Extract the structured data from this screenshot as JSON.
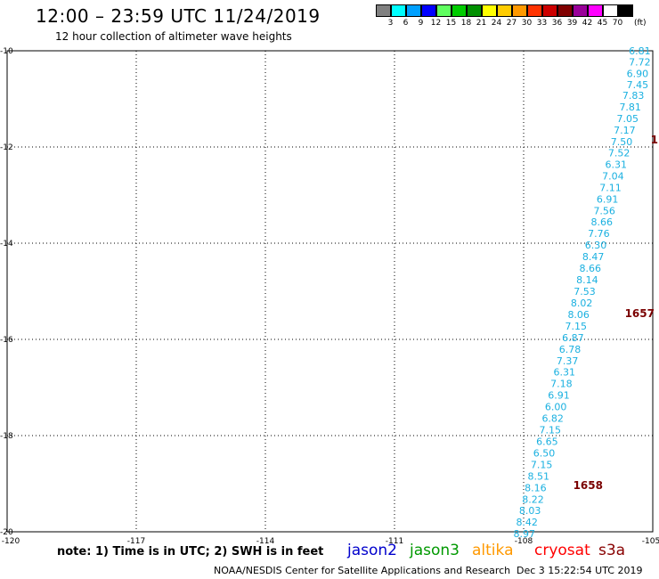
{
  "header": {
    "title": "12:00 – 23:59 UTC 11/24/2019",
    "subtitle": "12 hour collection of altimeter wave heights"
  },
  "legend": {
    "unit": "(ft)",
    "entries": [
      {
        "label": "3",
        "color": "#808080"
      },
      {
        "label": "6",
        "color": "#00ffff"
      },
      {
        "label": "9",
        "color": "#00a0ff"
      },
      {
        "label": "12",
        "color": "#0000ff"
      },
      {
        "label": "15",
        "color": "#60ff60"
      },
      {
        "label": "18",
        "color": "#00cc00"
      },
      {
        "label": "21",
        "color": "#009000"
      },
      {
        "label": "24",
        "color": "#ffff00"
      },
      {
        "label": "27",
        "color": "#ffcc00"
      },
      {
        "label": "30",
        "color": "#ff9900"
      },
      {
        "label": "33",
        "color": "#ff3300"
      },
      {
        "label": "36",
        "color": "#cc0000"
      },
      {
        "label": "39",
        "color": "#800000"
      },
      {
        "label": "42",
        "color": "#990099"
      },
      {
        "label": "45",
        "color": "#ff00ff"
      },
      {
        "label": "70",
        "color": "#ffffff"
      },
      {
        "label": "",
        "color": "#000000"
      }
    ]
  },
  "footer": {
    "note": "note: 1) Time is in UTC; 2) SWH is in feet",
    "satellites": [
      {
        "name": "jason2",
        "color": "#0000cc"
      },
      {
        "name": "jason3",
        "color": "#009900"
      },
      {
        "name": "altika",
        "color": "#ff9900"
      },
      {
        "name": "cryosat",
        "color": "#ff0000"
      },
      {
        "name": "s3a",
        "color": "#880000"
      }
    ],
    "credit": "NOAA/NESDIS Center for Satellite Applications and Research",
    "timestamp": "Dec  3 15:22:54 UTC 2019"
  },
  "chart_data": {
    "type": "scatter",
    "xlim": [
      -120,
      -105
    ],
    "ylim": [
      -20,
      -10
    ],
    "x_ticks": [
      -120,
      -117,
      -114,
      -111,
      -108,
      -105
    ],
    "x_tick_labels": [
      "-120",
      "-117",
      "-114",
      "-111",
      "-108",
      "-105"
    ],
    "y_ticks": [
      -10,
      -12,
      -14,
      -16,
      -18,
      -20
    ],
    "y_tick_labels": [
      "-10",
      "-12",
      "-14",
      "-16",
      "-18",
      "-20"
    ],
    "grid": true,
    "point_color": "#1ab0e0",
    "time_label_color": "#7a0000",
    "points": [
      {
        "lon": -105.05,
        "lat": -10.0,
        "value": "6.81"
      },
      {
        "lon": -105.05,
        "lat": -10.23,
        "value": "7.72"
      },
      {
        "lon": -105.1,
        "lat": -10.47,
        "value": "6.90"
      },
      {
        "lon": -105.1,
        "lat": -10.7,
        "value": "7.45"
      },
      {
        "lon": -105.2,
        "lat": -10.93,
        "value": "7.83"
      },
      {
        "lon": -105.27,
        "lat": -11.17,
        "value": "7.81"
      },
      {
        "lon": -105.33,
        "lat": -11.41,
        "value": "7.05"
      },
      {
        "lon": -105.4,
        "lat": -11.65,
        "value": "7.17"
      },
      {
        "lon": -105.47,
        "lat": -11.89,
        "value": "7.50"
      },
      {
        "lon": -105.53,
        "lat": -12.12,
        "value": "7.52"
      },
      {
        "lon": -105.6,
        "lat": -12.36,
        "value": "6.31"
      },
      {
        "lon": -105.67,
        "lat": -12.6,
        "value": "7.04"
      },
      {
        "lon": -105.73,
        "lat": -12.84,
        "value": "7.11"
      },
      {
        "lon": -105.8,
        "lat": -13.08,
        "value": "6.91"
      },
      {
        "lon": -105.87,
        "lat": -13.32,
        "value": "7.56"
      },
      {
        "lon": -105.93,
        "lat": -13.56,
        "value": "8.66"
      },
      {
        "lon": -106.0,
        "lat": -13.8,
        "value": "7.76"
      },
      {
        "lon": -106.07,
        "lat": -14.04,
        "value": "6.30"
      },
      {
        "lon": -106.13,
        "lat": -14.28,
        "value": "8.47"
      },
      {
        "lon": -106.2,
        "lat": -14.52,
        "value": "8.66"
      },
      {
        "lon": -106.27,
        "lat": -14.76,
        "value": "8.14"
      },
      {
        "lon": -106.33,
        "lat": -15.0,
        "value": "7.53"
      },
      {
        "lon": -106.4,
        "lat": -15.24,
        "value": "8.02"
      },
      {
        "lon": -106.47,
        "lat": -15.48,
        "value": "8.06"
      },
      {
        "lon": -106.53,
        "lat": -15.72,
        "value": "7.15"
      },
      {
        "lon": -106.6,
        "lat": -15.96,
        "value": "6.87"
      },
      {
        "lon": -106.67,
        "lat": -16.2,
        "value": "6.78"
      },
      {
        "lon": -106.73,
        "lat": -16.44,
        "value": "7.37"
      },
      {
        "lon": -106.8,
        "lat": -16.68,
        "value": "6.31"
      },
      {
        "lon": -106.87,
        "lat": -16.92,
        "value": "7.18"
      },
      {
        "lon": -106.93,
        "lat": -17.16,
        "value": "6.91"
      },
      {
        "lon": -107.0,
        "lat": -17.4,
        "value": "6.00"
      },
      {
        "lon": -107.07,
        "lat": -17.64,
        "value": "6.82"
      },
      {
        "lon": -107.13,
        "lat": -17.88,
        "value": "7.15"
      },
      {
        "lon": -107.2,
        "lat": -18.12,
        "value": "6.65"
      },
      {
        "lon": -107.27,
        "lat": -18.36,
        "value": "6.50"
      },
      {
        "lon": -107.33,
        "lat": -18.6,
        "value": "7.15"
      },
      {
        "lon": -107.4,
        "lat": -18.84,
        "value": "8.51"
      },
      {
        "lon": -107.47,
        "lat": -19.08,
        "value": "8.16"
      },
      {
        "lon": -107.53,
        "lat": -19.32,
        "value": "8.22"
      },
      {
        "lon": -107.6,
        "lat": -19.56,
        "value": "8.03"
      },
      {
        "lon": -107.67,
        "lat": -19.8,
        "value": "8.42"
      },
      {
        "lon": -107.73,
        "lat": -20.04,
        "value": "8.97"
      }
    ],
    "time_labels": [
      {
        "lon": -105.05,
        "lat": -11.85,
        "text": "1"
      },
      {
        "lon": -105.65,
        "lat": -15.46,
        "text": "1657"
      },
      {
        "lon": -106.85,
        "lat": -19.04,
        "text": "1658"
      }
    ]
  }
}
